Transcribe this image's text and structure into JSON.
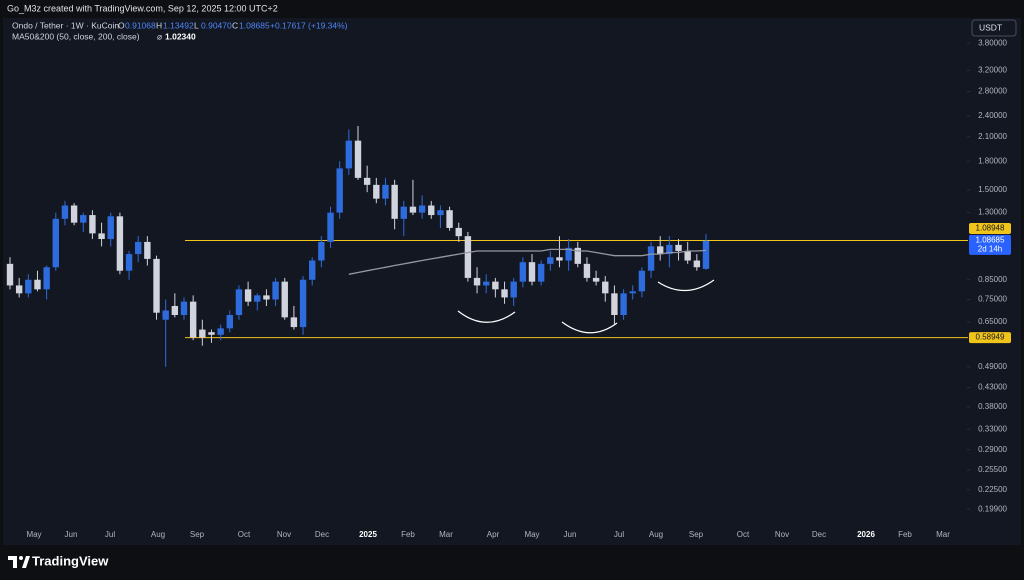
{
  "header": {
    "credit": "Go_M3z created with TradingView.com, Sep 12, 2025 12:00 UTC+2"
  },
  "chart_data": {
    "type": "candlestick",
    "title": "Ondo / Tether · 1W · KuCoin",
    "ohlc_legend": [
      {
        "key": "O",
        "label": "0.91068"
      },
      {
        "key": "H",
        "label": "1.13492"
      },
      {
        "key": "L",
        "label": "0.90470"
      },
      {
        "key": "C",
        "label": "1.08685"
      }
    ],
    "change": "+0.17617 (+19.34%)",
    "currency": "USDT",
    "up_color": "#2e6bdc",
    "down_color": "#d1d4dc",
    "log_scale": true,
    "ylim": [
      0.18,
      4.4
    ],
    "yticks": [
      {
        "value": 3.8,
        "label": "3.80000"
      },
      {
        "value": 3.2,
        "label": "3.20000"
      },
      {
        "value": 2.8,
        "label": "2.80000"
      },
      {
        "value": 2.4,
        "label": "2.40000"
      },
      {
        "value": 2.1,
        "label": "2.10000"
      },
      {
        "value": 1.8,
        "label": "1.80000"
      },
      {
        "value": 1.5,
        "label": "1.50000"
      },
      {
        "value": 1.3,
        "label": "1.30000"
      },
      {
        "value": 0.85,
        "label": "0.85000"
      },
      {
        "value": 0.75,
        "label": "0.75000"
      },
      {
        "value": 0.65,
        "label": "0.65000"
      },
      {
        "value": 0.49,
        "label": "0.49000"
      },
      {
        "value": 0.43,
        "label": "0.43000"
      },
      {
        "value": 0.38,
        "label": "0.38000"
      },
      {
        "value": 0.33,
        "label": "0.33000"
      },
      {
        "value": 0.29,
        "label": "0.29000"
      },
      {
        "value": 0.255,
        "label": "0.25500"
      },
      {
        "value": 0.225,
        "label": "0.22500"
      },
      {
        "value": 0.199,
        "label": "0.19900"
      }
    ],
    "x_labels": [
      "May",
      "Jun",
      "Jul",
      "Aug",
      "Sep",
      "Oct",
      "Nov",
      "Dec",
      "2025",
      "Feb",
      "Mar",
      "Apr",
      "May",
      "Jun",
      "Jul",
      "Aug",
      "Sep",
      "Oct",
      "Nov",
      "Dec",
      "2026",
      "Feb",
      "Mar"
    ],
    "candles": [
      [
        0.94,
        0.98,
        0.8,
        0.82
      ],
      [
        0.82,
        0.86,
        0.76,
        0.78
      ],
      [
        0.78,
        0.88,
        0.76,
        0.85
      ],
      [
        0.85,
        0.9,
        0.79,
        0.8
      ],
      [
        0.8,
        0.93,
        0.75,
        0.92
      ],
      [
        0.92,
        1.3,
        0.9,
        1.25
      ],
      [
        1.25,
        1.4,
        1.2,
        1.36
      ],
      [
        1.36,
        1.38,
        1.2,
        1.22
      ],
      [
        1.22,
        1.3,
        1.15,
        1.28
      ],
      [
        1.28,
        1.32,
        1.1,
        1.14
      ],
      [
        1.14,
        1.22,
        1.05,
        1.1
      ],
      [
        1.1,
        1.3,
        1.05,
        1.27
      ],
      [
        1.27,
        1.3,
        0.88,
        0.9
      ],
      [
        0.9,
        1.02,
        0.85,
        1.0
      ],
      [
        1.0,
        1.12,
        0.95,
        1.08
      ],
      [
        1.08,
        1.12,
        0.93,
        0.97
      ],
      [
        0.97,
        0.99,
        0.66,
        0.69
      ],
      [
        0.66,
        0.75,
        0.49,
        0.7
      ],
      [
        0.72,
        0.78,
        0.67,
        0.68
      ],
      [
        0.68,
        0.76,
        0.66,
        0.74
      ],
      [
        0.74,
        0.77,
        0.58,
        0.59
      ],
      [
        0.62,
        0.66,
        0.56,
        0.59
      ],
      [
        0.61,
        0.62,
        0.57,
        0.6
      ],
      [
        0.6,
        0.64,
        0.58,
        0.625
      ],
      [
        0.625,
        0.7,
        0.61,
        0.68
      ],
      [
        0.68,
        0.82,
        0.66,
        0.8
      ],
      [
        0.8,
        0.84,
        0.72,
        0.74
      ],
      [
        0.74,
        0.78,
        0.7,
        0.77
      ],
      [
        0.77,
        0.8,
        0.72,
        0.75
      ],
      [
        0.75,
        0.86,
        0.72,
        0.84
      ],
      [
        0.84,
        0.86,
        0.66,
        0.67
      ],
      [
        0.67,
        0.72,
        0.62,
        0.63
      ],
      [
        0.63,
        0.87,
        0.6,
        0.85
      ],
      [
        0.85,
        0.98,
        0.82,
        0.96
      ],
      [
        0.96,
        1.12,
        0.92,
        1.08
      ],
      [
        1.08,
        1.35,
        1.04,
        1.3
      ],
      [
        1.3,
        1.8,
        1.25,
        1.72
      ],
      [
        1.72,
        2.2,
        1.65,
        2.05
      ],
      [
        2.05,
        2.25,
        1.6,
        1.62
      ],
      [
        1.62,
        1.75,
        1.48,
        1.55
      ],
      [
        1.55,
        1.62,
        1.38,
        1.42
      ],
      [
        1.42,
        1.62,
        1.36,
        1.55
      ],
      [
        1.55,
        1.6,
        1.17,
        1.25
      ],
      [
        1.25,
        1.4,
        1.12,
        1.35
      ],
      [
        1.35,
        1.6,
        1.28,
        1.3
      ],
      [
        1.3,
        1.45,
        1.25,
        1.36
      ],
      [
        1.36,
        1.4,
        1.25,
        1.28
      ],
      [
        1.28,
        1.36,
        1.18,
        1.32
      ],
      [
        1.32,
        1.35,
        1.16,
        1.18
      ],
      [
        1.18,
        1.22,
        1.08,
        1.12
      ],
      [
        1.12,
        1.15,
        0.84,
        0.86
      ],
      [
        0.86,
        0.92,
        0.78,
        0.82
      ],
      [
        0.82,
        0.88,
        0.78,
        0.84
      ],
      [
        0.84,
        0.86,
        0.76,
        0.8
      ],
      [
        0.8,
        0.84,
        0.73,
        0.76
      ],
      [
        0.76,
        0.86,
        0.72,
        0.84
      ],
      [
        0.84,
        0.98,
        0.81,
        0.95
      ],
      [
        0.95,
        1.0,
        0.82,
        0.84
      ],
      [
        0.84,
        0.96,
        0.82,
        0.94
      ],
      [
        0.94,
        1.02,
        0.9,
        0.98
      ],
      [
        0.98,
        1.12,
        0.92,
        0.96
      ],
      [
        0.96,
        1.1,
        0.9,
        1.04
      ],
      [
        1.04,
        1.08,
        0.92,
        0.94
      ],
      [
        0.94,
        0.98,
        0.84,
        0.86
      ],
      [
        0.86,
        0.9,
        0.82,
        0.84
      ],
      [
        0.84,
        0.87,
        0.74,
        0.78
      ],
      [
        0.78,
        0.82,
        0.64,
        0.68
      ],
      [
        0.68,
        0.8,
        0.66,
        0.78
      ],
      [
        0.78,
        0.82,
        0.75,
        0.79
      ],
      [
        0.79,
        0.92,
        0.76,
        0.9
      ],
      [
        0.9,
        1.08,
        0.86,
        1.05
      ],
      [
        1.05,
        1.12,
        0.96,
        1.0
      ],
      [
        1.0,
        1.12,
        0.92,
        1.06
      ],
      [
        1.06,
        1.1,
        0.96,
        1.02
      ],
      [
        1.02,
        1.08,
        0.94,
        0.96
      ],
      [
        0.96,
        1.0,
        0.9,
        0.92
      ],
      [
        0.91068,
        1.13492,
        0.9047,
        1.08685
      ]
    ],
    "series": [
      {
        "name": "MA50&200 (50, close, 200, close)",
        "value_label": "1.02340",
        "color": "#9598a1",
        "values": [
          null,
          null,
          null,
          null,
          null,
          null,
          null,
          null,
          null,
          null,
          null,
          null,
          null,
          null,
          null,
          null,
          null,
          null,
          null,
          null,
          null,
          null,
          null,
          null,
          null,
          null,
          null,
          null,
          null,
          null,
          null,
          null,
          null,
          null,
          null,
          null,
          null,
          0.88,
          0.89,
          0.9,
          0.91,
          0.92,
          0.93,
          0.94,
          0.95,
          0.96,
          0.97,
          0.98,
          0.99,
          1.0,
          1.01,
          1.02,
          1.02,
          1.02,
          1.02,
          1.02,
          1.02,
          1.02,
          1.02,
          1.03,
          1.03,
          1.03,
          1.02,
          1.02,
          1.01,
          1.0,
          0.99,
          0.99,
          0.99,
          0.99,
          1.0,
          1.0,
          1.01,
          1.01,
          1.02,
          1.02,
          1.0234
        ]
      }
    ],
    "levels": [
      1.08948,
      0.58949
    ],
    "level_color": "#f0c419",
    "last_price": {
      "value": 1.08685,
      "countdown": "2d 14h"
    }
  },
  "footer": {
    "brand": "TradingView"
  }
}
